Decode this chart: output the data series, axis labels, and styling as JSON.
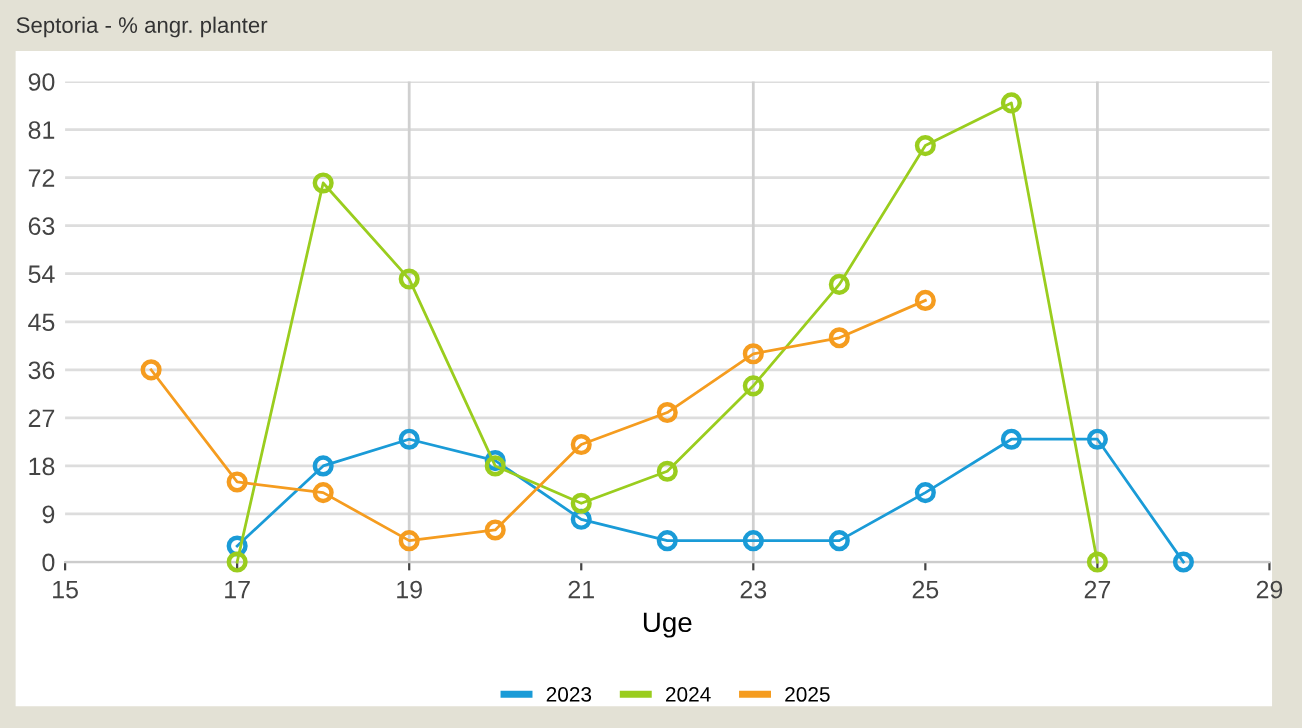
{
  "chart_data": {
    "type": "line",
    "title": "Septoria - % angr. planter",
    "xlabel": "Uge",
    "xlim": [
      15,
      29
    ],
    "xticks": [
      15,
      17,
      19,
      21,
      23,
      25,
      27,
      29
    ],
    "ylim": [
      0,
      90
    ],
    "yticks": [
      0,
      9,
      18,
      27,
      36,
      45,
      54,
      63,
      72,
      81,
      90
    ],
    "grid": "y",
    "legend": "bottom",
    "marker": "circle",
    "line_style": "solid",
    "ref_lines": [
      {
        "axis": "x",
        "value": 19,
        "color": "#d0d0d0"
      },
      {
        "axis": "x",
        "value": 23,
        "color": "#d0d0d0"
      },
      {
        "axis": "x",
        "value": 27,
        "color": "#d0d0d0"
      }
    ],
    "series": [
      {
        "name": "2023",
        "color": "#1a9bd7",
        "x": [
          17,
          18,
          19,
          20,
          21,
          22,
          23,
          24,
          25,
          26,
          27,
          28
        ],
        "values": [
          3,
          18,
          23,
          19,
          8,
          4,
          4,
          4,
          13,
          23,
          23,
          0
        ]
      },
      {
        "name": "2024",
        "color": "#9acd1e",
        "x": [
          17,
          18,
          19,
          20,
          21,
          22,
          23,
          24,
          25,
          26,
          27
        ],
        "values": [
          0,
          71,
          53,
          18,
          11,
          17,
          33,
          52,
          78,
          86,
          0
        ]
      },
      {
        "name": "2025",
        "color": "#f59c1f",
        "x": [
          16,
          17,
          18,
          19,
          20,
          21,
          22,
          23,
          24,
          25
        ],
        "values": [
          36,
          15,
          13,
          4,
          6,
          22,
          28,
          39,
          42,
          49
        ]
      }
    ]
  }
}
